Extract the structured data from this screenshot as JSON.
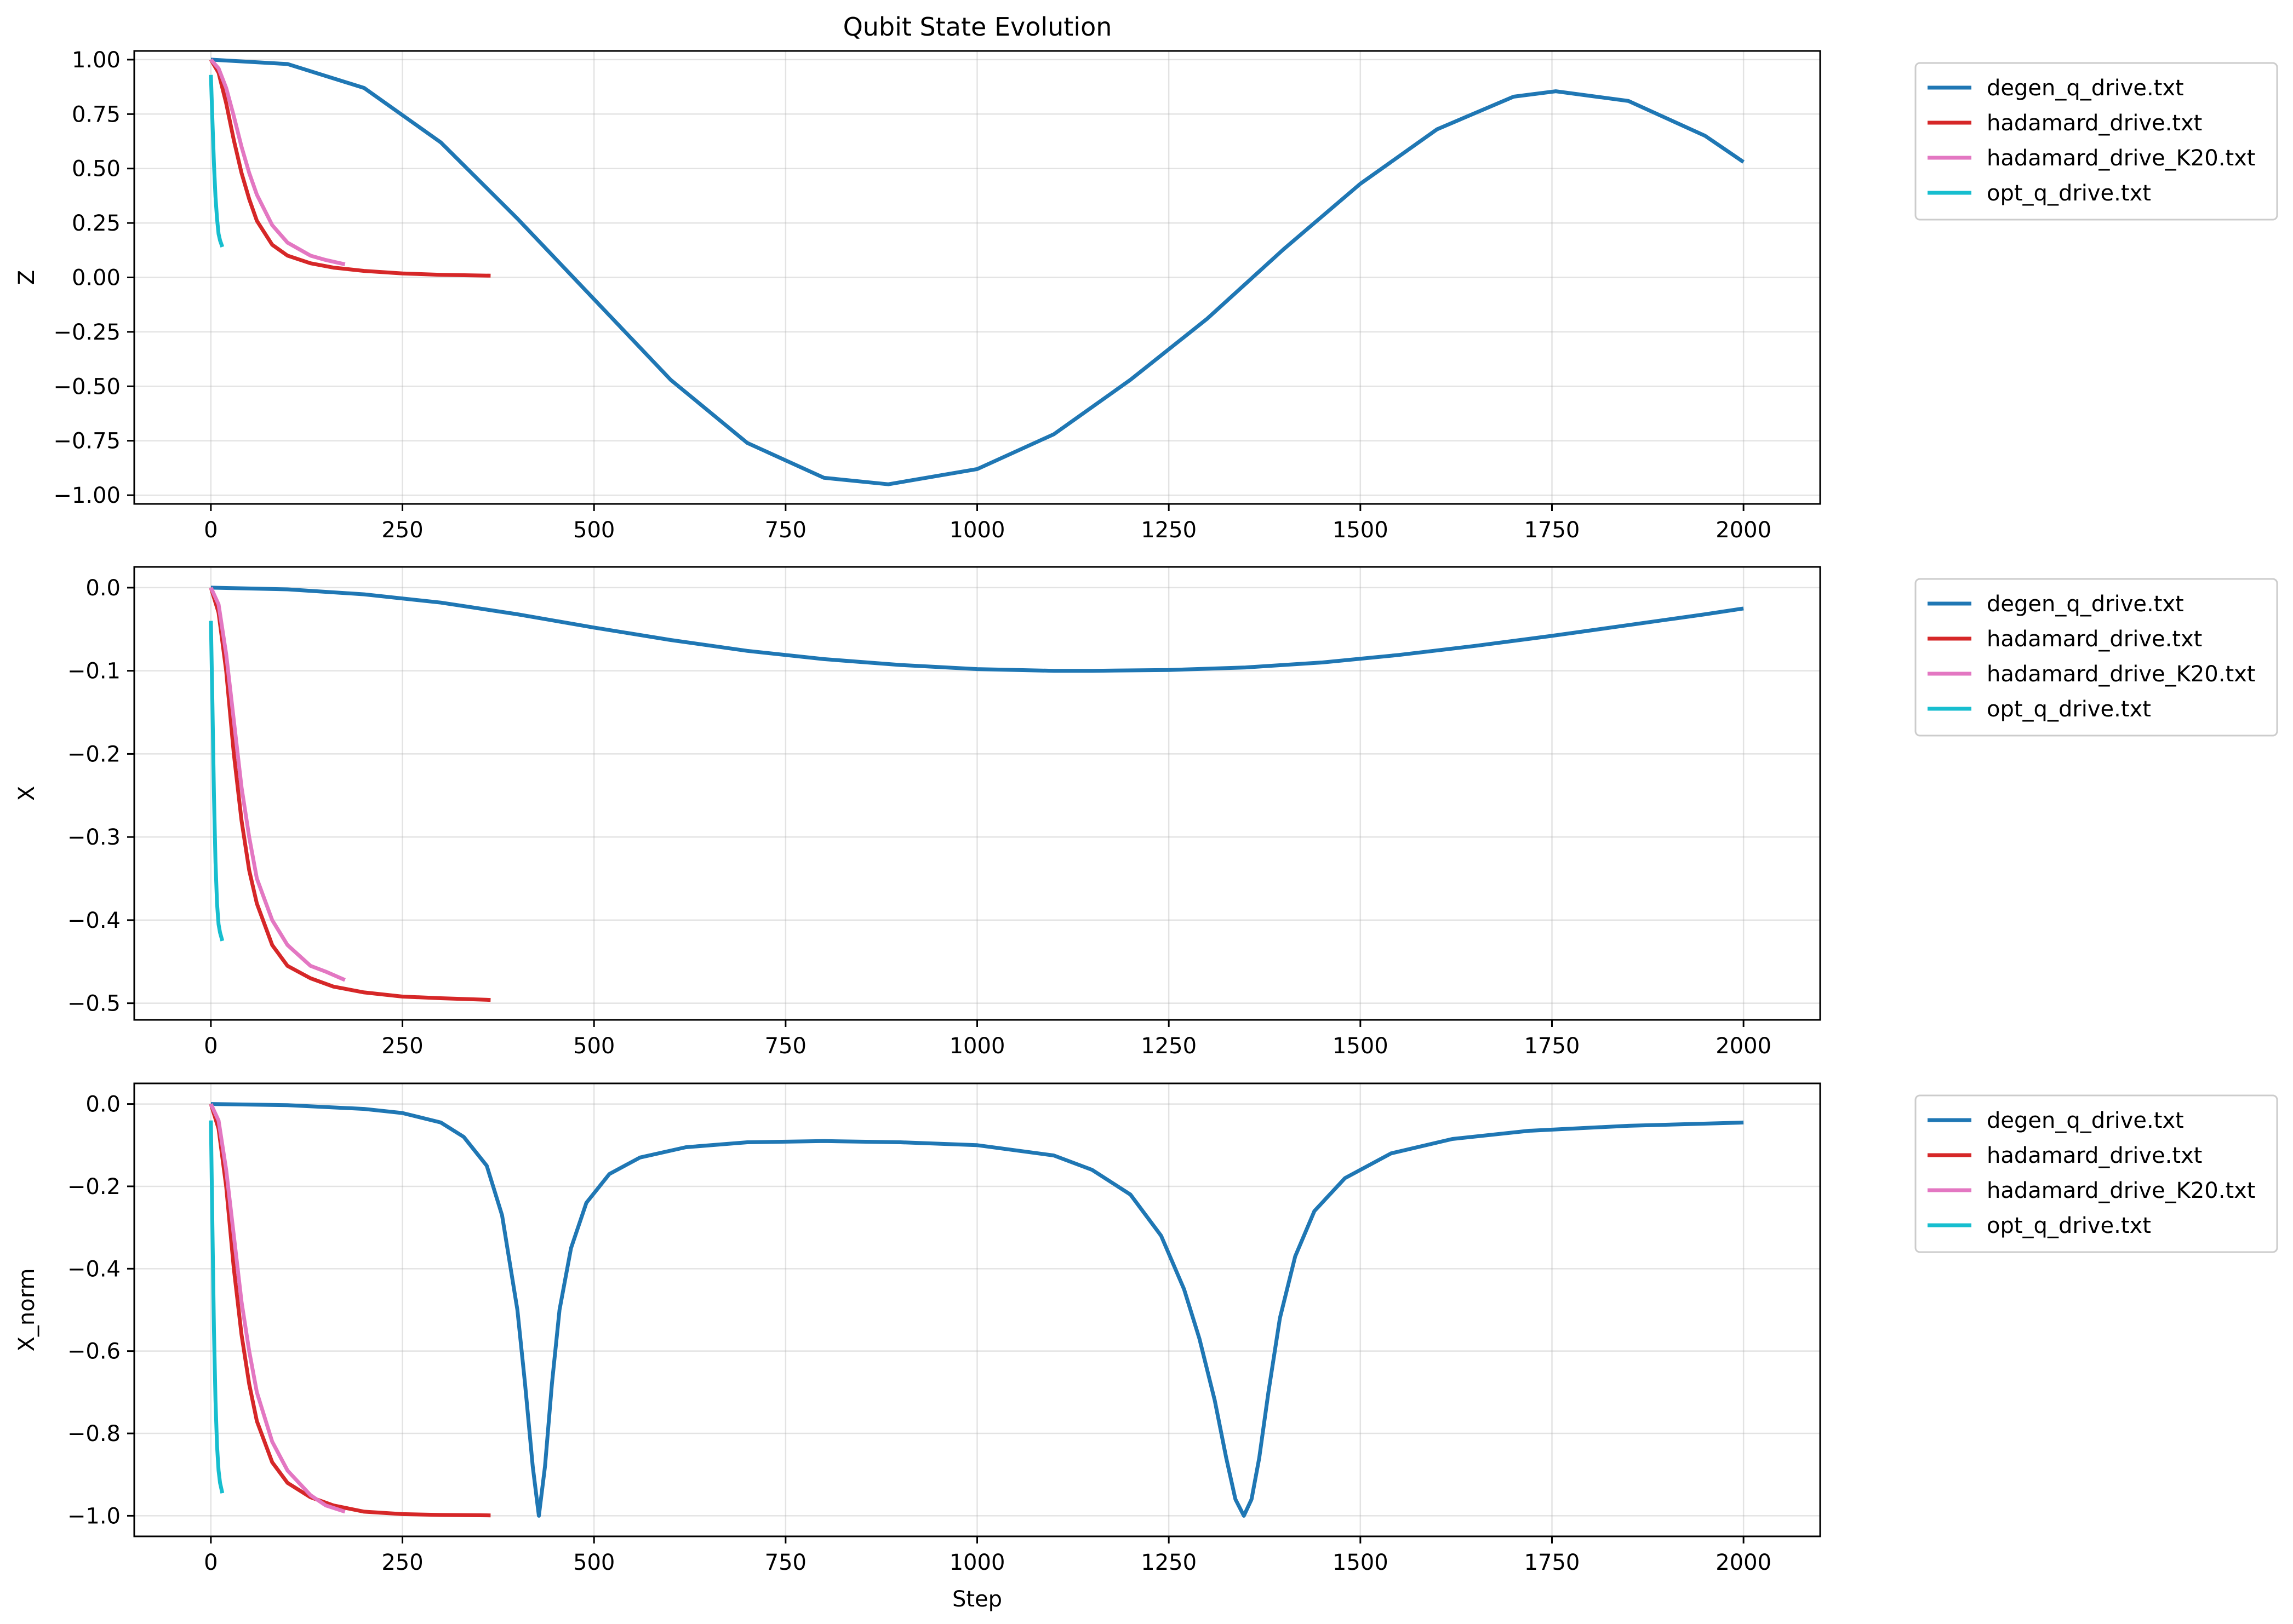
{
  "chart_data": [
    {
      "type": "line",
      "title": "Qubit State Evolution",
      "xlabel": "",
      "ylabel": "Z",
      "xlim": [
        -100,
        2100
      ],
      "ylim": [
        -1.04,
        1.04
      ],
      "xticks": [
        0,
        250,
        500,
        750,
        1000,
        1250,
        1500,
        1750,
        2000
      ],
      "yticks": [
        1.0,
        0.75,
        0.5,
        0.25,
        0.0,
        -0.25,
        -0.5,
        -0.75,
        -1.0
      ],
      "ytick_labels": [
        "1.00",
        "0.75",
        "0.50",
        "0.25",
        "0.00",
        "−0.25",
        "−0.50",
        "−0.75",
        "−1.00"
      ],
      "grid": true,
      "legend": "outside-right",
      "series": [
        {
          "name": "degen_q_drive.txt",
          "color": "#1f77b4",
          "x": [
            0,
            100,
            200,
            300,
            400,
            500,
            600,
            700,
            800,
            884,
            1000,
            1100,
            1200,
            1300,
            1400,
            1500,
            1600,
            1700,
            1755,
            1850,
            1950,
            2000
          ],
          "y": [
            1.0,
            0.98,
            0.87,
            0.62,
            0.27,
            -0.1,
            -0.47,
            -0.76,
            -0.92,
            -0.95,
            -0.88,
            -0.72,
            -0.47,
            -0.19,
            0.13,
            0.43,
            0.68,
            0.83,
            0.855,
            0.81,
            0.65,
            0.53
          ]
        },
        {
          "name": "hadamard_drive.txt",
          "color": "#d62728",
          "x": [
            0,
            10,
            20,
            30,
            40,
            50,
            60,
            80,
            100,
            130,
            160,
            200,
            250,
            300,
            365
          ],
          "y": [
            1.0,
            0.94,
            0.8,
            0.63,
            0.48,
            0.36,
            0.26,
            0.15,
            0.1,
            0.065,
            0.045,
            0.03,
            0.018,
            0.012,
            0.008
          ]
        },
        {
          "name": "hadamard_drive_K20.txt",
          "color": "#e377c2",
          "x": [
            0,
            10,
            20,
            30,
            40,
            50,
            60,
            80,
            100,
            130,
            150,
            175
          ],
          "y": [
            1.0,
            0.96,
            0.87,
            0.74,
            0.6,
            0.48,
            0.38,
            0.24,
            0.16,
            0.1,
            0.08,
            0.06
          ]
        },
        {
          "name": "opt_q_drive.txt",
          "color": "#17becf",
          "x": [
            0,
            2,
            4,
            6,
            8,
            10,
            12,
            15
          ],
          "y": [
            0.93,
            0.72,
            0.52,
            0.37,
            0.27,
            0.2,
            0.17,
            0.14
          ]
        }
      ]
    },
    {
      "type": "line",
      "xlabel": "",
      "ylabel": "X",
      "xlim": [
        -100,
        2100
      ],
      "ylim": [
        -0.52,
        0.025
      ],
      "xticks": [
        0,
        250,
        500,
        750,
        1000,
        1250,
        1500,
        1750,
        2000
      ],
      "yticks": [
        0.0,
        -0.1,
        -0.2,
        -0.3,
        -0.4,
        -0.5
      ],
      "ytick_labels": [
        "0.0",
        "−0.1",
        "−0.2",
        "−0.3",
        "−0.4",
        "−0.5"
      ],
      "grid": true,
      "legend": "outside-right",
      "series": [
        {
          "name": "degen_q_drive.txt",
          "color": "#1f77b4",
          "x": [
            0,
            100,
            200,
            300,
            400,
            500,
            600,
            700,
            800,
            900,
            1000,
            1100,
            1150,
            1250,
            1350,
            1450,
            1550,
            1650,
            1750,
            1850,
            1950,
            2000
          ],
          "y": [
            0.0,
            -0.002,
            -0.008,
            -0.018,
            -0.032,
            -0.048,
            -0.063,
            -0.076,
            -0.086,
            -0.093,
            -0.098,
            -0.1,
            -0.1,
            -0.099,
            -0.096,
            -0.09,
            -0.081,
            -0.07,
            -0.058,
            -0.045,
            -0.032,
            -0.025
          ]
        },
        {
          "name": "hadamard_drive.txt",
          "color": "#d62728",
          "x": [
            0,
            10,
            20,
            30,
            40,
            50,
            60,
            80,
            100,
            130,
            160,
            200,
            250,
            300,
            365
          ],
          "y": [
            0.0,
            -0.03,
            -0.1,
            -0.2,
            -0.28,
            -0.34,
            -0.38,
            -0.43,
            -0.455,
            -0.47,
            -0.48,
            -0.487,
            -0.492,
            -0.494,
            -0.496
          ]
        },
        {
          "name": "hadamard_drive_K20.txt",
          "color": "#e377c2",
          "x": [
            0,
            10,
            20,
            30,
            40,
            50,
            60,
            80,
            100,
            130,
            150,
            175
          ],
          "y": [
            0.0,
            -0.02,
            -0.08,
            -0.16,
            -0.24,
            -0.3,
            -0.35,
            -0.4,
            -0.43,
            -0.455,
            -0.462,
            -0.472
          ]
        },
        {
          "name": "opt_q_drive.txt",
          "color": "#17becf",
          "x": [
            0,
            2,
            4,
            6,
            8,
            10,
            12,
            15
          ],
          "y": [
            -0.04,
            -0.14,
            -0.25,
            -0.33,
            -0.38,
            -0.405,
            -0.415,
            -0.425
          ]
        }
      ]
    },
    {
      "type": "line",
      "xlabel": "Step",
      "ylabel": "X_norm",
      "xlim": [
        -100,
        2100
      ],
      "ylim": [
        -1.05,
        0.05
      ],
      "xticks": [
        0,
        250,
        500,
        750,
        1000,
        1250,
        1500,
        1750,
        2000
      ],
      "yticks": [
        0.0,
        -0.2,
        -0.4,
        -0.6,
        -0.8,
        -1.0
      ],
      "ytick_labels": [
        "0.0",
        "−0.2",
        "−0.4",
        "−0.6",
        "−0.8",
        "−1.0"
      ],
      "grid": true,
      "legend": "outside-right",
      "series": [
        {
          "name": "degen_q_drive.txt",
          "color": "#1f77b4",
          "x": [
            0,
            100,
            200,
            250,
            300,
            330,
            360,
            380,
            400,
            410,
            420,
            428,
            436,
            445,
            455,
            470,
            490,
            520,
            560,
            620,
            700,
            800,
            900,
            1000,
            1100,
            1150,
            1200,
            1240,
            1270,
            1290,
            1310,
            1325,
            1337,
            1348,
            1358,
            1368,
            1380,
            1395,
            1415,
            1440,
            1480,
            1540,
            1620,
            1720,
            1850,
            2000
          ],
          "y": [
            0.0,
            -0.003,
            -0.012,
            -0.022,
            -0.045,
            -0.08,
            -0.15,
            -0.27,
            -0.5,
            -0.68,
            -0.88,
            -1.0,
            -0.88,
            -0.68,
            -0.5,
            -0.35,
            -0.24,
            -0.17,
            -0.13,
            -0.105,
            -0.093,
            -0.09,
            -0.093,
            -0.1,
            -0.125,
            -0.16,
            -0.22,
            -0.32,
            -0.45,
            -0.57,
            -0.72,
            -0.86,
            -0.96,
            -1.0,
            -0.96,
            -0.86,
            -0.7,
            -0.52,
            -0.37,
            -0.26,
            -0.18,
            -0.12,
            -0.085,
            -0.065,
            -0.053,
            -0.045
          ]
        },
        {
          "name": "hadamard_drive.txt",
          "color": "#d62728",
          "x": [
            0,
            10,
            20,
            30,
            40,
            50,
            60,
            80,
            100,
            130,
            160,
            200,
            250,
            300,
            365
          ],
          "y": [
            0.0,
            -0.06,
            -0.2,
            -0.4,
            -0.56,
            -0.68,
            -0.77,
            -0.87,
            -0.92,
            -0.955,
            -0.975,
            -0.99,
            -0.996,
            -0.998,
            -0.999
          ]
        },
        {
          "name": "hadamard_drive_K20.txt",
          "color": "#e377c2",
          "x": [
            0,
            10,
            20,
            30,
            40,
            50,
            60,
            80,
            100,
            130,
            150,
            175
          ],
          "y": [
            0.0,
            -0.04,
            -0.16,
            -0.32,
            -0.48,
            -0.6,
            -0.7,
            -0.82,
            -0.89,
            -0.95,
            -0.975,
            -0.99
          ]
        },
        {
          "name": "opt_q_drive.txt",
          "color": "#17becf",
          "x": [
            0,
            2,
            4,
            6,
            8,
            10,
            12,
            15
          ],
          "y": [
            -0.04,
            -0.3,
            -0.55,
            -0.72,
            -0.83,
            -0.89,
            -0.92,
            -0.945
          ]
        }
      ]
    }
  ]
}
